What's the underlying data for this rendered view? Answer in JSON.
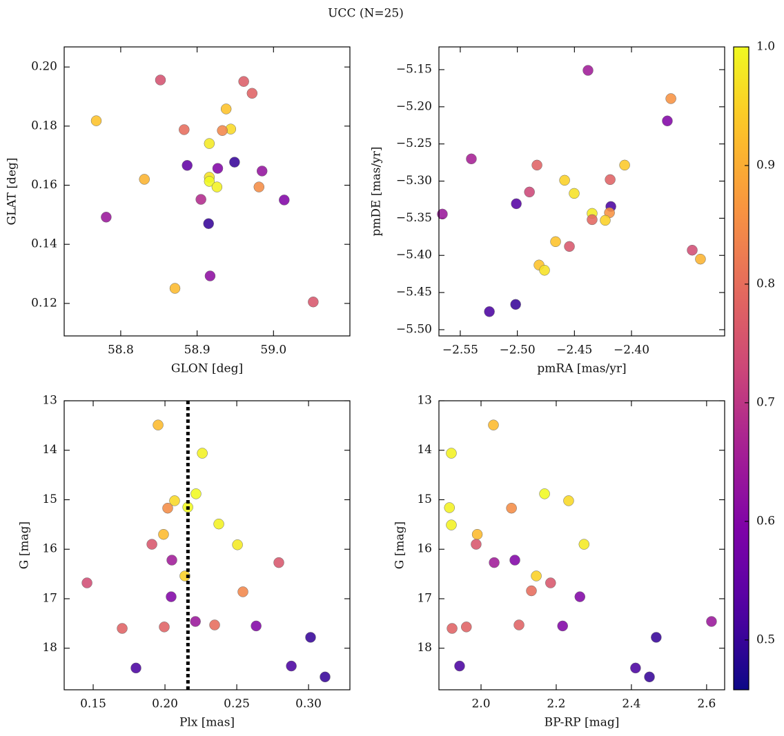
{
  "title": "UCC (N=25)",
  "colorbar": {
    "lim": [
      0.458,
      1.0
    ],
    "ticks": [
      0.5,
      0.6,
      0.7,
      0.8,
      0.9,
      {
        "value": 1,
        "label": "1.0"
      }
    ]
  },
  "chart_data": [
    {
      "type": "scatter",
      "xlabel": "GLON [deg]",
      "ylabel": "GLAT [deg]",
      "x": [
        58.768,
        58.852,
        58.961,
        58.972,
        58.938,
        58.944,
        58.883,
        58.933,
        58.916,
        58.949,
        58.887,
        58.927,
        58.985,
        58.831,
        58.916,
        58.916,
        58.926,
        58.981,
        58.905,
        58.781,
        59.014,
        58.915,
        58.917,
        58.871,
        59.052
      ],
      "y": [
        0.1818,
        0.1956,
        0.1951,
        0.1911,
        0.1858,
        0.179,
        0.1788,
        0.1785,
        0.1741,
        0.1678,
        0.1667,
        0.1657,
        0.1648,
        0.162,
        0.1627,
        0.1613,
        0.1594,
        0.1594,
        0.1552,
        0.1492,
        0.155,
        0.147,
        0.1293,
        0.1251,
        0.1205
      ],
      "c": [
        0.93,
        0.75,
        0.77,
        0.78,
        0.93,
        0.96,
        0.8,
        0.84,
        0.98,
        0.5,
        0.55,
        0.6,
        0.63,
        0.91,
        0.97,
        1.0,
        0.99,
        0.85,
        0.68,
        0.64,
        0.6,
        0.5,
        0.62,
        0.92,
        0.76
      ],
      "xlim": [
        58.726,
        59.1
      ],
      "ylim": [
        0.109,
        0.2068
      ],
      "xticks": [
        58.8,
        58.9,
        {
          "value": 59,
          "label": "59.0"
        }
      ],
      "yticks": [
        0.12,
        0.14,
        0.16,
        0.18,
        {
          "value": 0.2,
          "label": "0.20"
        }
      ]
    },
    {
      "type": "scatter",
      "xlabel": "pmRA [mas/yr]",
      "ylabel": "pmDE [mas/yr]",
      "x": [
        -2.4381,
        -2.3655,
        -2.3686,
        -2.5403,
        -2.4828,
        -2.406,
        -2.4586,
        -2.4187,
        -2.4502,
        -2.4894,
        -2.5009,
        -2.4181,
        -2.4345,
        -2.4193,
        -2.4345,
        -2.423,
        -2.5657,
        -2.3468,
        -2.4665,
        -2.4544,
        -2.481,
        -2.4762,
        -2.3396,
        -2.5245,
        -2.5015
      ],
      "y": [
        -5.151,
        -5.189,
        -5.219,
        -5.2701,
        -5.2785,
        -5.2785,
        -5.2989,
        -5.298,
        -5.3166,
        -5.3147,
        -5.3305,
        -5.3342,
        -5.3435,
        -5.3426,
        -5.3519,
        -5.3528,
        -5.3444,
        -5.393,
        -5.3815,
        -5.388,
        -5.413,
        -5.42,
        -5.405,
        -5.4757,
        -5.466
      ],
      "c": [
        0.65,
        0.86,
        0.6,
        0.66,
        0.78,
        0.94,
        0.95,
        0.78,
        0.97,
        0.73,
        0.53,
        0.52,
        0.98,
        0.86,
        0.79,
        0.95,
        0.64,
        0.74,
        0.93,
        0.76,
        0.93,
        0.97,
        0.91,
        0.52,
        0.5
      ],
      "xlim": [
        -2.5687,
        -2.3184
      ],
      "ylim": [
        -5.5084,
        -5.1194
      ],
      "xticks": [
        {
          "value": -2.55,
          "label": "−2.55"
        },
        {
          "value": -2.5,
          "label": "−2.50"
        },
        {
          "value": -2.45,
          "label": "−2.45"
        },
        {
          "value": -2.4,
          "label": "−2.40"
        }
      ],
      "yticks": [
        {
          "value": -5.5,
          "label": "−5.50"
        },
        {
          "value": -5.45,
          "label": "−5.45"
        },
        {
          "value": -5.4,
          "label": "−5.40"
        },
        {
          "value": -5.35,
          "label": "−5.35"
        },
        {
          "value": -5.3,
          "label": "−5.30"
        },
        {
          "value": -5.25,
          "label": "−5.25"
        },
        {
          "value": -5.2,
          "label": "−5.20"
        },
        {
          "value": -5.15,
          "label": "−5.15"
        }
      ]
    },
    {
      "type": "scatter",
      "xlabel": "Plx [mas]",
      "ylabel": "G [mag]",
      "vline": 0.216,
      "x": [
        0.1952,
        0.226,
        0.2216,
        0.2067,
        0.2019,
        0.2159,
        0.2375,
        0.199,
        0.1909,
        0.2505,
        0.2793,
        0.2048,
        0.2139,
        0.1457,
        0.2543,
        0.2043,
        0.2212,
        0.2346,
        0.1995,
        0.1702,
        0.2635,
        0.3014,
        0.288,
        0.1798,
        0.3115
      ],
      "y": [
        13.49,
        14.06,
        14.88,
        15.02,
        15.17,
        15.15,
        15.49,
        15.7,
        15.9,
        15.91,
        16.27,
        16.22,
        16.54,
        16.68,
        16.86,
        16.96,
        17.46,
        17.53,
        17.57,
        17.6,
        17.55,
        17.78,
        18.36,
        18.4,
        18.58
      ],
      "c": [
        0.92,
        0.99,
        1.0,
        0.96,
        0.85,
        1.0,
        0.99,
        0.92,
        0.76,
        0.98,
        0.76,
        0.65,
        0.95,
        0.74,
        0.84,
        0.6,
        0.64,
        0.8,
        0.78,
        0.78,
        0.6,
        0.5,
        0.52,
        0.52,
        0.5
      ],
      "xlim": [
        0.1298,
        0.3288
      ],
      "ylim": [
        18.84,
        13
      ],
      "xticks": [
        0.15,
        {
          "value": 0.2,
          "label": "0.20"
        },
        0.25,
        {
          "value": 0.3,
          "label": "0.30"
        }
      ],
      "yticks": [
        13,
        14,
        15,
        16,
        17,
        18
      ]
    },
    {
      "type": "scatter",
      "xlabel": "BP-RP [mag]",
      "ylabel": "G [mag]",
      "x": [
        2.033,
        1.921,
        2.169,
        2.233,
        1.916,
        2.081,
        1.921,
        1.99,
        1.987,
        2.274,
        2.035,
        2.09,
        2.147,
        2.185,
        2.134,
        2.263,
        2.613,
        2.101,
        1.961,
        1.923,
        2.217,
        2.466,
        1.943,
        2.411,
        2.448
      ],
      "y": [
        13.49,
        14.06,
        14.88,
        15.02,
        15.16,
        15.17,
        15.51,
        15.7,
        15.9,
        15.9,
        16.27,
        16.22,
        16.54,
        16.68,
        16.84,
        16.96,
        17.46,
        17.53,
        17.57,
        17.6,
        17.55,
        17.78,
        18.36,
        18.4,
        18.58
      ],
      "c": [
        0.92,
        0.99,
        1.0,
        0.96,
        0.99,
        0.85,
        0.99,
        0.92,
        0.76,
        0.98,
        0.65,
        0.6,
        0.95,
        0.76,
        0.8,
        0.6,
        0.64,
        0.78,
        0.78,
        0.78,
        0.6,
        0.5,
        0.52,
        0.52,
        0.5
      ],
      "xlim": [
        1.888,
        2.648
      ],
      "ylim": [
        18.84,
        13
      ],
      "xticks": [
        {
          "value": 2,
          "label": "2.0"
        },
        2.2,
        2.4,
        2.6
      ],
      "yticks": [
        13,
        14,
        15,
        16,
        17,
        18
      ]
    }
  ]
}
